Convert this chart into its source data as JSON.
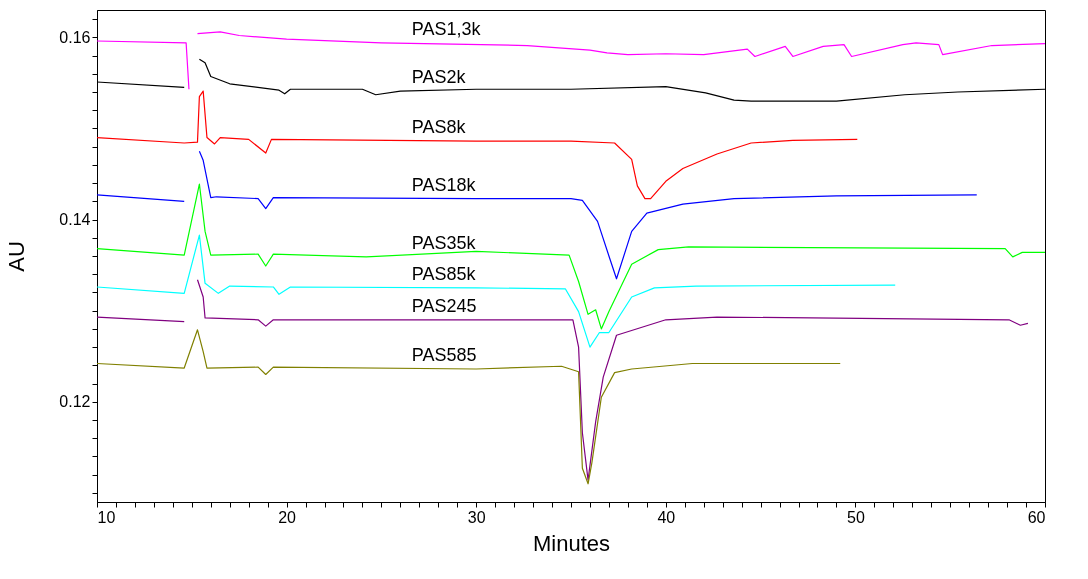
{
  "chart_data": {
    "type": "line",
    "xlabel": "Minutes",
    "ylabel": "AU",
    "xlim": [
      10,
      60
    ],
    "ylim": [
      0.109,
      0.163
    ],
    "xticks": [
      10,
      {
        "value": 11,
        "label": null
      },
      {
        "value": 12,
        "label": null
      },
      {
        "value": 13,
        "label": null
      },
      {
        "value": 14,
        "label": null
      },
      {
        "value": 15,
        "label": null
      },
      {
        "value": 16,
        "label": null
      },
      {
        "value": 17,
        "label": null
      },
      {
        "value": 18,
        "label": null
      },
      {
        "value": 19,
        "label": null
      },
      20,
      {
        "value": 21,
        "label": null
      },
      {
        "value": 22,
        "label": null
      },
      {
        "value": 23,
        "label": null
      },
      {
        "value": 24,
        "label": null
      },
      {
        "value": 25,
        "label": null
      },
      {
        "value": 26,
        "label": null
      },
      {
        "value": 27,
        "label": null
      },
      {
        "value": 28,
        "label": null
      },
      {
        "value": 29,
        "label": null
      },
      30,
      {
        "value": 31,
        "label": null
      },
      {
        "value": 32,
        "label": null
      },
      {
        "value": 33,
        "label": null
      },
      {
        "value": 34,
        "label": null
      },
      {
        "value": 35,
        "label": null
      },
      {
        "value": 36,
        "label": null
      },
      {
        "value": 37,
        "label": null
      },
      {
        "value": 38,
        "label": null
      },
      {
        "value": 39,
        "label": null
      },
      40,
      {
        "value": 41,
        "label": null
      },
      {
        "value": 42,
        "label": null
      },
      {
        "value": 43,
        "label": null
      },
      {
        "value": 44,
        "label": null
      },
      {
        "value": 45,
        "label": null
      },
      {
        "value": 46,
        "label": null
      },
      {
        "value": 47,
        "label": null
      },
      {
        "value": 48,
        "label": null
      },
      {
        "value": 49,
        "label": null
      },
      50,
      {
        "value": 51,
        "label": null
      },
      {
        "value": 52,
        "label": null
      },
      {
        "value": 53,
        "label": null
      },
      {
        "value": 54,
        "label": null
      },
      {
        "value": 55,
        "label": null
      },
      {
        "value": 56,
        "label": null
      },
      {
        "value": 57,
        "label": null
      },
      {
        "value": 58,
        "label": null
      },
      {
        "value": 59,
        "label": null
      },
      60
    ],
    "yticks": [
      {
        "value": 0.11,
        "label": null
      },
      {
        "value": 0.112,
        "label": null
      },
      {
        "value": 0.114,
        "label": null
      },
      {
        "value": 0.116,
        "label": null
      },
      {
        "value": 0.118,
        "label": null
      },
      0.12,
      {
        "value": 0.122,
        "label": null
      },
      {
        "value": 0.124,
        "label": null
      },
      {
        "value": 0.126,
        "label": null
      },
      {
        "value": 0.128,
        "label": null
      },
      0.14,
      {
        "value": 0.13,
        "label": null
      },
      {
        "value": 0.132,
        "label": null
      },
      {
        "value": 0.134,
        "label": null
      },
      {
        "value": 0.136,
        "label": null
      },
      {
        "value": 0.138,
        "label": null
      },
      {
        "value": 0.142,
        "label": null
      },
      {
        "value": 0.144,
        "label": null
      },
      {
        "value": 0.146,
        "label": null
      },
      {
        "value": 0.148,
        "label": null
      },
      {
        "value": 0.15,
        "label": null
      },
      {
        "value": 0.152,
        "label": null
      },
      {
        "value": 0.154,
        "label": null
      },
      {
        "value": 0.156,
        "label": null
      },
      {
        "value": 0.158,
        "label": null
      },
      0.16,
      {
        "value": 0.162,
        "label": null
      }
    ],
    "grid": false,
    "marker": "none",
    "line_style": "solid",
    "series": [
      {
        "name": "PAS1,3k",
        "color": "#ff00ff",
        "x": [
          10,
          14.7,
          14.85,
          15.0,
          15.3,
          16.5,
          17.5,
          20,
          25,
          32.7,
          36,
          36.9,
          38,
          40,
          42,
          44.3,
          44.7,
          46.3,
          46.7,
          48.3,
          49.4,
          49.8,
          52.5,
          53.2,
          54.4,
          54.6,
          57.2,
          60
        ],
        "values": [
          0.1596,
          0.1594,
          0.1543,
          null,
          0.1604,
          0.1606,
          0.1602,
          0.1598,
          0.1594,
          0.1591,
          0.1586,
          0.1583,
          0.1581,
          0.1582,
          0.1581,
          0.1587,
          0.1579,
          0.159,
          0.1579,
          0.159,
          0.1592,
          0.1579,
          0.1592,
          0.1594,
          0.1592,
          0.1581,
          0.1591,
          0.1593
        ]
      },
      {
        "name": "PAS2k",
        "color": "#000000",
        "x": [
          10,
          14.6,
          14.75,
          15.2,
          15.4,
          15.7,
          16,
          17,
          19.6,
          19.9,
          20.2,
          24,
          24.7,
          26,
          30,
          35,
          40,
          42.1,
          43.6,
          44.5,
          49,
          52.6,
          55.4,
          60
        ],
        "values": [
          0.1551,
          0.1545,
          null,
          null,
          0.1576,
          0.1572,
          0.1557,
          0.1549,
          0.1542,
          0.1538,
          0.1543,
          0.1543,
          0.1537,
          0.1541,
          0.1543,
          0.1543,
          0.1546,
          0.1539,
          0.1531,
          0.153,
          0.153,
          0.1537,
          0.154,
          0.1543
        ]
      },
      {
        "name": "PAS8k",
        "color": "#ff0000",
        "x": [
          10,
          14.6,
          15.3,
          15.4,
          15.6,
          15.8,
          16.2,
          16.5,
          18,
          18.9,
          19.2,
          30,
          35,
          37.3,
          38.2,
          38.5,
          38.9,
          39.2,
          40,
          40.9,
          42.7,
          44.5,
          46.7,
          50.1
        ],
        "values": [
          0.149,
          0.1484,
          0.1485,
          0.1535,
          0.1541,
          0.149,
          0.1483,
          0.149,
          0.1488,
          0.1473,
          0.1488,
          0.1486,
          0.1486,
          0.1484,
          0.1466,
          0.1437,
          0.1423,
          0.1423,
          0.1442,
          0.1456,
          0.1472,
          0.1484,
          0.1487,
          0.1488
        ]
      },
      {
        "name": "PAS18k",
        "color": "#0000ff",
        "x": [
          10,
          14.6,
          15.1,
          15.2,
          15.4,
          15.6,
          16,
          16.3,
          18.5,
          18.9,
          19.3,
          30,
          35,
          35.6,
          36.4,
          37,
          37.4,
          38.2,
          39,
          40.9,
          43.6,
          49,
          56.4
        ],
        "values": [
          0.1427,
          0.142,
          null,
          null,
          0.1475,
          0.1465,
          0.1424,
          0.1425,
          0.1423,
          0.1412,
          0.1424,
          0.1423,
          0.1423,
          0.1421,
          0.1398,
          0.136,
          0.1335,
          0.1387,
          0.1407,
          0.1417,
          0.1423,
          0.1426,
          0.1427
        ]
      },
      {
        "name": "PAS35k",
        "color": "#00ff00",
        "x": [
          10,
          14.6,
          15.4,
          15.7,
          16,
          18.5,
          18.9,
          19.3,
          24.2,
          30,
          34.9,
          35.4,
          35.9,
          36.3,
          36.6,
          37,
          38.2,
          39.6,
          41.2,
          57.9,
          58.3,
          58.8,
          60
        ],
        "values": [
          0.1368,
          0.1361,
          0.1439,
          0.1387,
          0.1361,
          0.1362,
          0.1349,
          0.1362,
          0.1359,
          0.1365,
          0.1361,
          0.1332,
          0.1296,
          0.1301,
          0.128,
          0.1299,
          0.1351,
          0.1367,
          0.137,
          0.1368,
          0.1359,
          0.1364,
          0.1364
        ]
      },
      {
        "name": "PAS85k",
        "color": "#00ffff",
        "x": [
          10,
          14.6,
          15.4,
          15.7,
          16.4,
          17,
          19.3,
          19.6,
          20.2,
          30,
          34.7,
          35.4,
          36,
          36.5,
          37,
          38.2,
          39.4,
          41.6,
          52.1
        ],
        "values": [
          0.1326,
          0.1319,
          0.1383,
          0.133,
          0.1319,
          0.1327,
          0.1326,
          0.1318,
          0.1326,
          0.1325,
          0.1324,
          0.1299,
          0.126,
          0.1276,
          0.1276,
          0.1315,
          0.1325,
          0.1327,
          0.1328
        ]
      },
      {
        "name": "PAS245",
        "color": "#800080",
        "x": [
          10,
          14.6,
          14.8,
          15.0,
          15.3,
          15.6,
          15.7,
          18.5,
          18.9,
          19.3,
          30,
          35.1,
          35.4,
          35.6,
          35.9,
          36.3,
          36.7,
          37.4,
          40,
          42.7,
          58.1,
          58.7,
          59.1
        ],
        "values": [
          0.1293,
          0.1288,
          null,
          null,
          0.1334,
          0.1315,
          0.1292,
          0.129,
          0.1283,
          0.129,
          0.129,
          0.129,
          0.126,
          0.1166,
          0.1114,
          0.1178,
          0.1227,
          0.1273,
          0.129,
          0.1293,
          0.129,
          0.1284,
          0.1286
        ]
      },
      {
        "name": "PAS585",
        "color": "#808000",
        "x": [
          10,
          14.6,
          15.3,
          15.6,
          15.8,
          18.5,
          18.9,
          19.3,
          30,
          34.5,
          35.4,
          35.6,
          35.9,
          36.1,
          36.6,
          37.3,
          38.2,
          41.4,
          49.2
        ],
        "values": [
          0.1242,
          0.1237,
          0.1279,
          0.1255,
          0.1237,
          0.1238,
          0.123,
          0.1238,
          0.1236,
          0.1239,
          0.1233,
          0.1127,
          0.111,
          0.1133,
          0.1205,
          0.1232,
          0.1236,
          0.1242,
          0.1242
        ]
      }
    ]
  }
}
